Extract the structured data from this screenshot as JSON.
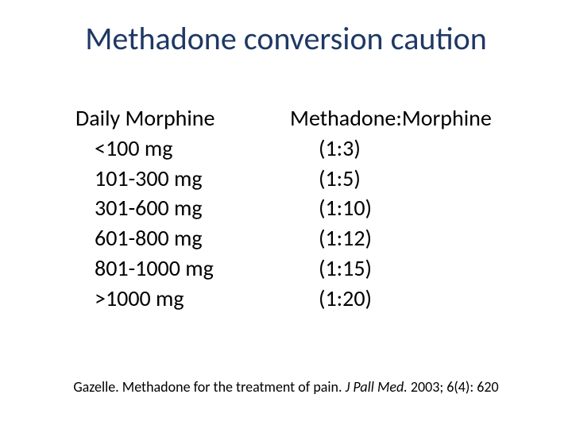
{
  "title": "Methadone conversion caution",
  "colors": {
    "title_color": "#1f3864",
    "text_color": "#000000",
    "background": "#ffffff"
  },
  "typography": {
    "title_fontsize_pt": 40,
    "body_fontsize_pt": 28,
    "citation_fontsize_pt": 18,
    "font_family": "Calibri"
  },
  "left_column": {
    "header": "Daily Morphine",
    "items": [
      "<100 mg",
      "101-300 mg",
      "301-600 mg",
      "601-800 mg",
      "801-1000 mg",
      ">1000 mg"
    ]
  },
  "right_column": {
    "header": "Methadone:Morphine",
    "items": [
      "(1:3)",
      "(1:5)",
      "(1:10)",
      "(1:12)",
      "(1:15)",
      "(1:20)"
    ]
  },
  "citation": {
    "author_title": "Gazelle.  Methadone for the treatment of pain.  ",
    "journal": "J Pall Med.",
    "year_info": "  2003; 6(4): 620"
  }
}
